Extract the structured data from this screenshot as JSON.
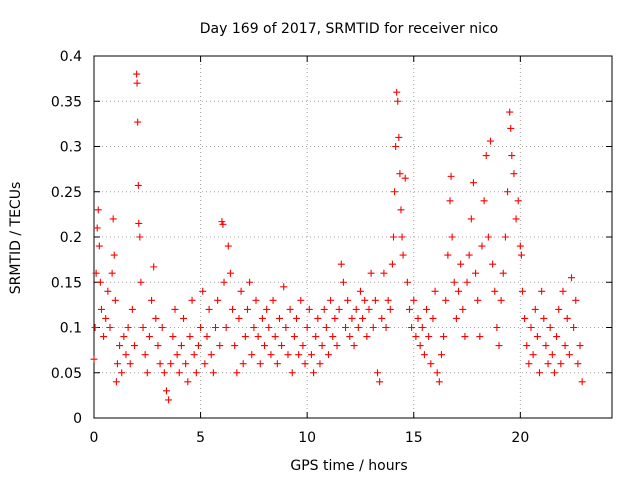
{
  "chart_data": {
    "type": "scatter",
    "title": "Day 169 of 2017, SRMTID for receiver nico",
    "xlabel": "GPS time / hours",
    "ylabel": "SRMTID / TECUs",
    "xlim": [
      0,
      24.3
    ],
    "ylim": [
      0,
      0.4
    ],
    "grid": true,
    "marker": "+",
    "x_ticks": [
      0,
      5,
      10,
      15,
      20
    ],
    "x_tick_labels": [
      "0",
      "5",
      "10",
      "15",
      "20"
    ],
    "y_ticks": [
      0,
      0.05,
      0.1,
      0.15,
      0.2,
      0.25,
      0.3,
      0.35,
      0.4
    ],
    "y_tick_labels": [
      "0",
      "0.05",
      "0.1",
      "0.15",
      "0.2",
      "0.25",
      "0.3",
      "0.35",
      "0.4"
    ],
    "series": [
      {
        "name": "SRMTID",
        "color": "#ff0000",
        "points": [
          [
            0.0,
            0.065
          ],
          [
            0.05,
            0.1
          ],
          [
            0.1,
            0.16
          ],
          [
            0.15,
            0.21
          ],
          [
            0.2,
            0.23
          ],
          [
            0.25,
            0.19
          ],
          [
            0.3,
            0.15
          ],
          [
            0.35,
            0.12
          ],
          [
            0.45,
            0.09
          ],
          [
            0.55,
            0.11
          ],
          [
            0.65,
            0.14
          ],
          [
            0.75,
            0.1
          ],
          [
            0.85,
            0.16
          ],
          [
            0.9,
            0.22
          ],
          [
            0.95,
            0.18
          ],
          [
            1.0,
            0.13
          ],
          [
            1.05,
            0.04
          ],
          [
            1.1,
            0.06
          ],
          [
            1.2,
            0.08
          ],
          [
            1.3,
            0.05
          ],
          [
            1.4,
            0.09
          ],
          [
            1.5,
            0.07
          ],
          [
            1.6,
            0.1
          ],
          [
            1.7,
            0.06
          ],
          [
            1.8,
            0.12
          ],
          [
            1.9,
            0.08
          ],
          [
            2.0,
            0.38
          ],
          [
            2.02,
            0.37
          ],
          [
            2.05,
            0.327
          ],
          [
            2.08,
            0.257
          ],
          [
            2.1,
            0.215
          ],
          [
            2.15,
            0.2
          ],
          [
            2.2,
            0.15
          ],
          [
            2.3,
            0.1
          ],
          [
            2.4,
            0.07
          ],
          [
            2.5,
            0.05
          ],
          [
            2.6,
            0.09
          ],
          [
            2.7,
            0.13
          ],
          [
            2.8,
            0.167
          ],
          [
            2.9,
            0.11
          ],
          [
            3.0,
            0.08
          ],
          [
            3.1,
            0.06
          ],
          [
            3.2,
            0.1
          ],
          [
            3.3,
            0.05
          ],
          [
            3.4,
            0.03
          ],
          [
            3.5,
            0.02
          ],
          [
            3.6,
            0.06
          ],
          [
            3.7,
            0.09
          ],
          [
            3.8,
            0.12
          ],
          [
            3.9,
            0.07
          ],
          [
            4.0,
            0.05
          ],
          [
            4.1,
            0.08
          ],
          [
            4.2,
            0.11
          ],
          [
            4.3,
            0.06
          ],
          [
            4.4,
            0.04
          ],
          [
            4.5,
            0.09
          ],
          [
            4.6,
            0.13
          ],
          [
            4.7,
            0.07
          ],
          [
            4.8,
            0.05
          ],
          [
            4.9,
            0.08
          ],
          [
            5.0,
            0.1
          ],
          [
            5.1,
            0.14
          ],
          [
            5.2,
            0.06
          ],
          [
            5.3,
            0.09
          ],
          [
            5.4,
            0.12
          ],
          [
            5.5,
            0.07
          ],
          [
            5.6,
            0.05
          ],
          [
            5.7,
            0.1
          ],
          [
            5.8,
            0.13
          ],
          [
            5.9,
            0.08
          ],
          [
            6.0,
            0.217
          ],
          [
            6.05,
            0.214
          ],
          [
            6.1,
            0.15
          ],
          [
            6.2,
            0.1
          ],
          [
            6.3,
            0.19
          ],
          [
            6.4,
            0.16
          ],
          [
            6.5,
            0.12
          ],
          [
            6.6,
            0.08
          ],
          [
            6.7,
            0.05
          ],
          [
            6.8,
            0.11
          ],
          [
            6.9,
            0.14
          ],
          [
            7.0,
            0.06
          ],
          [
            7.1,
            0.09
          ],
          [
            7.2,
            0.12
          ],
          [
            7.3,
            0.15
          ],
          [
            7.4,
            0.07
          ],
          [
            7.5,
            0.1
          ],
          [
            7.6,
            0.13
          ],
          [
            7.7,
            0.09
          ],
          [
            7.8,
            0.06
          ],
          [
            7.9,
            0.11
          ],
          [
            8.0,
            0.08
          ],
          [
            8.1,
            0.12
          ],
          [
            8.2,
            0.1
          ],
          [
            8.3,
            0.07
          ],
          [
            8.4,
            0.13
          ],
          [
            8.5,
            0.09
          ],
          [
            8.6,
            0.06
          ],
          [
            8.7,
            0.11
          ],
          [
            8.8,
            0.08
          ],
          [
            8.9,
            0.145
          ],
          [
            9.0,
            0.1
          ],
          [
            9.1,
            0.07
          ],
          [
            9.2,
            0.12
          ],
          [
            9.3,
            0.05
          ],
          [
            9.4,
            0.09
          ],
          [
            9.5,
            0.11
          ],
          [
            9.6,
            0.07
          ],
          [
            9.7,
            0.13
          ],
          [
            9.8,
            0.08
          ],
          [
            9.9,
            0.06
          ],
          [
            10.0,
            0.1
          ],
          [
            10.1,
            0.12
          ],
          [
            10.2,
            0.07
          ],
          [
            10.3,
            0.05
          ],
          [
            10.4,
            0.09
          ],
          [
            10.5,
            0.11
          ],
          [
            10.6,
            0.06
          ],
          [
            10.7,
            0.08
          ],
          [
            10.8,
            0.12
          ],
          [
            10.9,
            0.1
          ],
          [
            11.0,
            0.07
          ],
          [
            11.1,
            0.13
          ],
          [
            11.2,
            0.09
          ],
          [
            11.3,
            0.11
          ],
          [
            11.4,
            0.08
          ],
          [
            11.5,
            0.12
          ],
          [
            11.6,
            0.17
          ],
          [
            11.7,
            0.15
          ],
          [
            11.8,
            0.1
          ],
          [
            11.9,
            0.13
          ],
          [
            12.0,
            0.09
          ],
          [
            12.1,
            0.11
          ],
          [
            12.2,
            0.08
          ],
          [
            12.3,
            0.12
          ],
          [
            12.4,
            0.1
          ],
          [
            12.5,
            0.14
          ],
          [
            12.6,
            0.11
          ],
          [
            12.7,
            0.13
          ],
          [
            12.8,
            0.09
          ],
          [
            12.9,
            0.12
          ],
          [
            13.0,
            0.16
          ],
          [
            13.1,
            0.1
          ],
          [
            13.2,
            0.13
          ],
          [
            13.3,
            0.05
          ],
          [
            13.4,
            0.04
          ],
          [
            13.5,
            0.11
          ],
          [
            13.6,
            0.16
          ],
          [
            13.7,
            0.1
          ],
          [
            13.8,
            0.13
          ],
          [
            13.9,
            0.12
          ],
          [
            14.0,
            0.17
          ],
          [
            14.05,
            0.2
          ],
          [
            14.1,
            0.25
          ],
          [
            14.15,
            0.3
          ],
          [
            14.2,
            0.36
          ],
          [
            14.25,
            0.35
          ],
          [
            14.3,
            0.31
          ],
          [
            14.35,
            0.27
          ],
          [
            14.4,
            0.23
          ],
          [
            14.45,
            0.2
          ],
          [
            14.5,
            0.18
          ],
          [
            14.6,
            0.265
          ],
          [
            14.7,
            0.15
          ],
          [
            14.8,
            0.12
          ],
          [
            14.9,
            0.1
          ],
          [
            15.0,
            0.13
          ],
          [
            15.1,
            0.09
          ],
          [
            15.2,
            0.11
          ],
          [
            15.3,
            0.08
          ],
          [
            15.4,
            0.1
          ],
          [
            15.5,
            0.07
          ],
          [
            15.6,
            0.12
          ],
          [
            15.7,
            0.09
          ],
          [
            15.8,
            0.06
          ],
          [
            15.9,
            0.11
          ],
          [
            16.0,
            0.14
          ],
          [
            16.1,
            0.05
          ],
          [
            16.2,
            0.04
          ],
          [
            16.3,
            0.07
          ],
          [
            16.4,
            0.09
          ],
          [
            16.5,
            0.13
          ],
          [
            16.6,
            0.18
          ],
          [
            16.7,
            0.24
          ],
          [
            16.75,
            0.267
          ],
          [
            16.8,
            0.2
          ],
          [
            16.9,
            0.15
          ],
          [
            17.0,
            0.11
          ],
          [
            17.1,
            0.14
          ],
          [
            17.2,
            0.17
          ],
          [
            17.3,
            0.12
          ],
          [
            17.4,
            0.09
          ],
          [
            17.5,
            0.15
          ],
          [
            17.6,
            0.18
          ],
          [
            17.7,
            0.22
          ],
          [
            17.8,
            0.26
          ],
          [
            17.9,
            0.16
          ],
          [
            18.0,
            0.13
          ],
          [
            18.1,
            0.09
          ],
          [
            18.2,
            0.19
          ],
          [
            18.3,
            0.24
          ],
          [
            18.4,
            0.29
          ],
          [
            18.5,
            0.2
          ],
          [
            18.6,
            0.306
          ],
          [
            18.7,
            0.17
          ],
          [
            18.8,
            0.14
          ],
          [
            18.9,
            0.1
          ],
          [
            19.0,
            0.08
          ],
          [
            19.1,
            0.13
          ],
          [
            19.2,
            0.16
          ],
          [
            19.3,
            0.2
          ],
          [
            19.4,
            0.25
          ],
          [
            19.5,
            0.338
          ],
          [
            19.55,
            0.32
          ],
          [
            19.6,
            0.29
          ],
          [
            19.7,
            0.27
          ],
          [
            19.8,
            0.22
          ],
          [
            19.9,
            0.24
          ],
          [
            20.0,
            0.19
          ],
          [
            20.05,
            0.18
          ],
          [
            20.1,
            0.14
          ],
          [
            20.2,
            0.11
          ],
          [
            20.3,
            0.08
          ],
          [
            20.4,
            0.06
          ],
          [
            20.5,
            0.1
          ],
          [
            20.6,
            0.07
          ],
          [
            20.7,
            0.12
          ],
          [
            20.8,
            0.09
          ],
          [
            20.9,
            0.05
          ],
          [
            21.0,
            0.14
          ],
          [
            21.1,
            0.11
          ],
          [
            21.2,
            0.08
          ],
          [
            21.3,
            0.06
          ],
          [
            21.4,
            0.1
          ],
          [
            21.5,
            0.07
          ],
          [
            21.6,
            0.05
          ],
          [
            21.7,
            0.09
          ],
          [
            21.8,
            0.12
          ],
          [
            21.9,
            0.06
          ],
          [
            22.0,
            0.14
          ],
          [
            22.1,
            0.08
          ],
          [
            22.2,
            0.11
          ],
          [
            22.3,
            0.07
          ],
          [
            22.4,
            0.155
          ],
          [
            22.5,
            0.1
          ],
          [
            22.6,
            0.13
          ],
          [
            22.7,
            0.06
          ],
          [
            22.8,
            0.08
          ],
          [
            22.9,
            0.04
          ]
        ]
      }
    ]
  }
}
